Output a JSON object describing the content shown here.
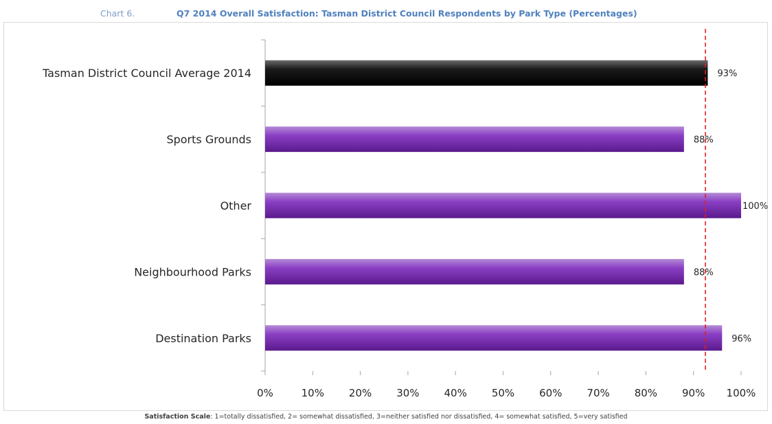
{
  "caption": {
    "number": "Chart 6.",
    "title": "Q7 2014 Overall Satisfaction: Tasman District Council Respondents by Park Type (Percentages)"
  },
  "chart_data": {
    "type": "bar",
    "orientation": "horizontal",
    "categories": [
      "Tasman District Council Average 2014",
      "Sports Grounds",
      "Other",
      "Neighbourhood Parks",
      "Destination Parks"
    ],
    "values": [
      93,
      88,
      100,
      88,
      96
    ],
    "value_labels": [
      "93%",
      "88%",
      "100%",
      "88%",
      "96%"
    ],
    "bar_colors": [
      "#000000",
      "#7030a0",
      "#7030a0",
      "#7030a0",
      "#7030a0"
    ],
    "xlim": [
      0,
      100
    ],
    "x_ticks": [
      "0%",
      "10%",
      "20%",
      "30%",
      "40%",
      "50%",
      "60%",
      "70%",
      "80%",
      "90%",
      "100%"
    ],
    "reference_line": {
      "value": 92.5,
      "color": "#e02020",
      "style": "dashed"
    },
    "grid": false,
    "legend": "none"
  },
  "footnote": {
    "label": "Satisfaction Scale",
    "text": ": 1=totally dissatisfied, 2= somewhat dissatisfied, 3=neither satisfied nor dissatisfied, 4= somewhat satisfied, 5=very satisfied"
  }
}
